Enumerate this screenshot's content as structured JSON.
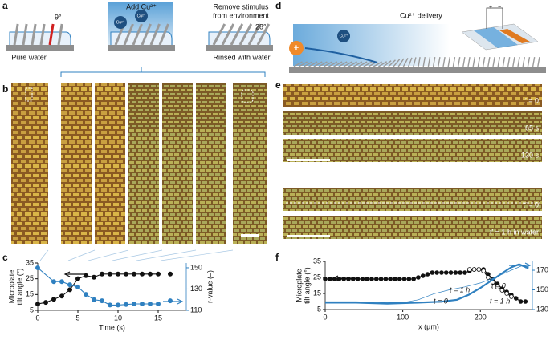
{
  "panel_labels": [
    "a",
    "b",
    "c",
    "d",
    "e",
    "f"
  ],
  "panel_a": {
    "tilt_start": "9°",
    "add": "Add Cu²⁺",
    "ion": "Cu²⁺",
    "remove": [
      "Remove stimulus",
      "from environment"
    ],
    "tilt_end": "28°",
    "start": "Pure water",
    "end": "Rinsed with water"
  },
  "panel_d": {
    "charge": "+",
    "ion": "Cu²⁺",
    "delivery": "Cu²⁺ delivery",
    "polarity": [
      "+",
      "−"
    ]
  },
  "panel_e": {
    "labels": [
      "t′ = 0",
      "65 s",
      "130 s",
      "t′ = 0",
      "t′ = 1 h in water"
    ]
  },
  "chart_data": [
    {
      "type": "line",
      "xlabel": "Time (s)",
      "ylabel": [
        "Microplate",
        "tilt angle (°)"
      ],
      "y2label": "r-value (–)",
      "xlim": [
        0,
        18.5
      ],
      "xticks": [
        0,
        5,
        10,
        15
      ],
      "ylim": [
        5,
        35
      ],
      "yticks": [
        5,
        15,
        25,
        35
      ],
      "y2lim": [
        110,
        154.5
      ],
      "y2ticks": [
        110,
        130,
        150
      ],
      "series": [
        {
          "color": "#111111",
          "marker": "filled",
          "line": true,
          "x": [
            0,
            1,
            2,
            3,
            4,
            5,
            6,
            7,
            8,
            9,
            10,
            11,
            12,
            13,
            14,
            15
          ],
          "values": [
            9,
            10,
            12,
            14,
            18,
            25,
            27,
            26,
            28,
            28,
            28,
            28,
            28,
            28,
            28,
            28
          ]
        },
        {
          "color": "#111111",
          "marker": "filled",
          "line": false,
          "x": [
            16.5
          ],
          "values": [
            28
          ]
        },
        {
          "color": "#2f80c0",
          "marker": "filled",
          "line": true,
          "axis": "y2",
          "x": [
            0,
            2,
            3,
            4,
            5,
            6,
            7,
            8,
            9,
            10,
            11,
            12,
            13,
            14,
            15
          ],
          "values": [
            150,
            137,
            137,
            134,
            132,
            125,
            120,
            119,
            115,
            115,
            115.5,
            116,
            116,
            116,
            116
          ]
        },
        {
          "color": "#2f80c0",
          "marker": "filled",
          "line": false,
          "axis": "y2",
          "x": [
            16.5
          ],
          "values": [
            119
          ]
        }
      ],
      "annotations": []
    },
    {
      "type": "line",
      "xlabel": "x (µm)",
      "ylabel": [
        "Microplate",
        "tilt angle (°)"
      ],
      "y2label": "r-value (–)",
      "xlim": [
        0,
        267
      ],
      "xticks": [
        0,
        100,
        200
      ],
      "ylim": [
        5,
        35
      ],
      "yticks": [
        5,
        15,
        25,
        35
      ],
      "y2lim": [
        130,
        179
      ],
      "y2ticks": [
        130,
        150,
        170
      ],
      "series": [
        {
          "color": "#111111",
          "marker": "filled",
          "line": true,
          "x": [
            0,
            6,
            12,
            18,
            24,
            30,
            36,
            42,
            48,
            54,
            60,
            66,
            72,
            78,
            84,
            90,
            96,
            102,
            108,
            114,
            120,
            126,
            132,
            138,
            144,
            150,
            156,
            162,
            168,
            174,
            180,
            186,
            192,
            198,
            204,
            210,
            216,
            222,
            228,
            234,
            240,
            246,
            252,
            258
          ],
          "values": [
            24,
            24,
            24,
            24,
            24,
            24,
            24,
            24,
            24,
            24,
            24,
            24,
            24,
            24,
            24,
            24,
            24,
            24,
            24,
            24,
            25,
            26,
            27,
            28,
            28,
            28,
            28,
            28,
            28,
            28,
            28,
            29,
            30,
            30,
            30,
            27,
            24,
            21,
            18,
            16,
            14,
            12,
            10,
            10
          ]
        },
        {
          "color": "#111111",
          "marker": "open",
          "line": true,
          "x": [
            186,
            192,
            198,
            204,
            210,
            216,
            222,
            228,
            234,
            240
          ],
          "values": [
            30,
            30,
            30,
            29,
            25,
            22,
            19,
            17,
            15,
            13
          ]
        },
        {
          "color": "#2f80c0",
          "marker": "none",
          "line": true,
          "width": 2.2,
          "axis": "y2",
          "x": [
            0,
            40,
            80,
            120,
            150,
            170,
            185,
            200,
            215,
            230,
            240,
            250,
            262
          ],
          "values": [
            137,
            137,
            136,
            137,
            138,
            140,
            145,
            152,
            160,
            168,
            173,
            176,
            172
          ]
        },
        {
          "color": "#2f80c0",
          "marker": "none",
          "line": true,
          "width": 0.7,
          "axis": "y2",
          "x": [
            0,
            40,
            80,
            100,
            120,
            140,
            160,
            180,
            200,
            220,
            240,
            255,
            262
          ],
          "values": [
            138,
            138,
            137,
            137,
            140,
            146,
            150,
            153,
            157,
            163,
            170,
            175,
            173
          ]
        }
      ],
      "annotations": [
        {
          "text": "t = 1 h",
          "color": "#2f80c0"
        },
        {
          "text": "t = 0",
          "color": "#2f80c0"
        },
        {
          "text": "t = 0",
          "color": "#111111"
        },
        {
          "text": "t = 1 h",
          "color": "#111111"
        }
      ]
    }
  ]
}
